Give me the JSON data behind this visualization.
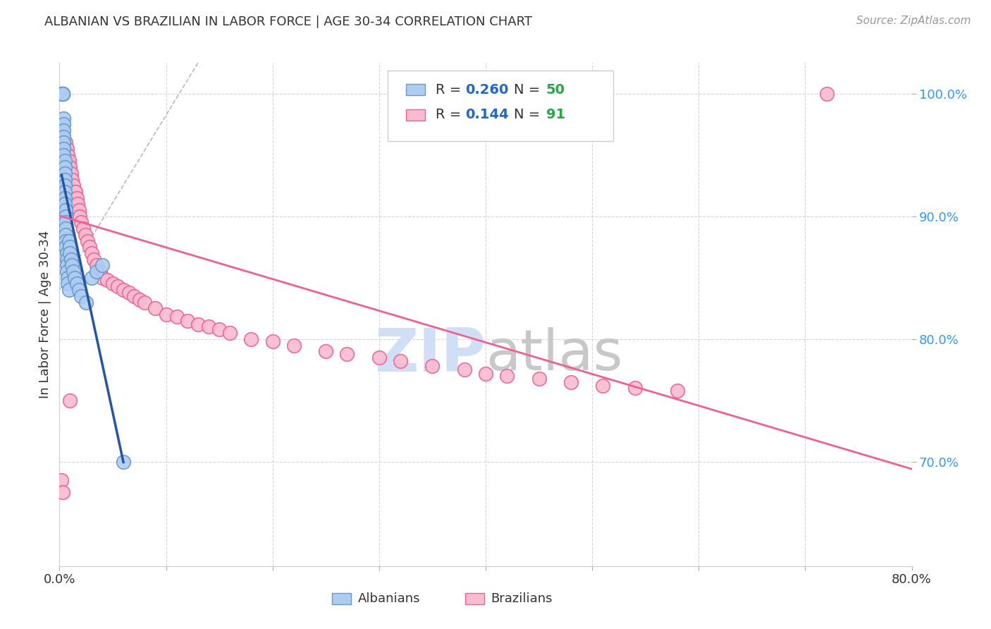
{
  "title": "ALBANIAN VS BRAZILIAN IN LABOR FORCE | AGE 30-34 CORRELATION CHART",
  "source": "Source: ZipAtlas.com",
  "ylabel": "In Labor Force | Age 30-34",
  "xlim": [
    0.0,
    0.8
  ],
  "ylim": [
    0.615,
    1.025
  ],
  "xtick_positions": [
    0.0,
    0.1,
    0.2,
    0.3,
    0.4,
    0.5,
    0.6,
    0.7,
    0.8
  ],
  "xtick_labels": [
    "0.0%",
    "",
    "",
    "",
    "",
    "",
    "",
    "",
    "80.0%"
  ],
  "ytick_positions": [
    1.0,
    0.9,
    0.8,
    0.7
  ],
  "ytick_labels": [
    "100.0%",
    "90.0%",
    "80.0%",
    "70.0%"
  ],
  "albanian_color": "#aeccf0",
  "albanian_edge_color": "#6699cc",
  "brazilian_color": "#f8bbd0",
  "brazilian_edge_color": "#f06090",
  "albanian_R": 0.26,
  "albanian_N": 50,
  "brazilian_R": 0.144,
  "brazilian_N": 91,
  "legend_R_color": "#2266cc",
  "legend_N_color": "#22aa44",
  "legend_label_color": "#333333",
  "albanian_trend_color": "#2255aa",
  "brazilian_trend_color": "#f06090",
  "ref_line_color": "#bbbbbb",
  "grid_color": "#cccccc",
  "background_color": "#ffffff",
  "watermark_zip_color": "#d0dff5",
  "watermark_atlas_color": "#c8c8c8",
  "axis_label_color": "#333333",
  "ytick_color": "#3399ff",
  "xtick_color": "#333333",
  "albanian_x": [
    0.002,
    0.003,
    0.003,
    0.003,
    0.003,
    0.003,
    0.004,
    0.004,
    0.004,
    0.004,
    0.004,
    0.004,
    0.004,
    0.005,
    0.005,
    0.005,
    0.005,
    0.005,
    0.005,
    0.005,
    0.005,
    0.006,
    0.006,
    0.006,
    0.006,
    0.006,
    0.006,
    0.006,
    0.007,
    0.007,
    0.007,
    0.007,
    0.008,
    0.008,
    0.009,
    0.009,
    0.01,
    0.01,
    0.011,
    0.012,
    0.013,
    0.014,
    0.016,
    0.018,
    0.02,
    0.025,
    0.03,
    0.035,
    0.04,
    0.06
  ],
  "albanian_y": [
    1.0,
    1.0,
    1.0,
    1.0,
    1.0,
    1.0,
    0.98,
    0.975,
    0.97,
    0.965,
    0.96,
    0.955,
    0.95,
    0.945,
    0.94,
    0.935,
    0.93,
    0.925,
    0.92,
    0.915,
    0.91,
    0.905,
    0.9,
    0.895,
    0.89,
    0.885,
    0.88,
    0.875,
    0.87,
    0.865,
    0.86,
    0.855,
    0.85,
    0.845,
    0.84,
    0.88,
    0.875,
    0.87,
    0.865,
    0.86,
    0.855,
    0.85,
    0.845,
    0.84,
    0.835,
    0.83,
    0.85,
    0.855,
    0.86,
    0.7
  ],
  "brazilian_x": [
    0.002,
    0.002,
    0.003,
    0.003,
    0.003,
    0.004,
    0.004,
    0.004,
    0.004,
    0.005,
    0.005,
    0.005,
    0.005,
    0.005,
    0.006,
    0.006,
    0.006,
    0.006,
    0.006,
    0.007,
    0.007,
    0.007,
    0.007,
    0.007,
    0.008,
    0.008,
    0.008,
    0.008,
    0.009,
    0.009,
    0.009,
    0.01,
    0.01,
    0.01,
    0.011,
    0.012,
    0.012,
    0.013,
    0.014,
    0.014,
    0.015,
    0.016,
    0.017,
    0.018,
    0.019,
    0.02,
    0.022,
    0.024,
    0.026,
    0.028,
    0.03,
    0.032,
    0.035,
    0.038,
    0.04,
    0.045,
    0.05,
    0.055,
    0.06,
    0.065,
    0.07,
    0.075,
    0.08,
    0.09,
    0.1,
    0.11,
    0.12,
    0.13,
    0.14,
    0.15,
    0.16,
    0.18,
    0.2,
    0.22,
    0.25,
    0.27,
    0.3,
    0.32,
    0.35,
    0.38,
    0.4,
    0.42,
    0.45,
    0.48,
    0.51,
    0.54,
    0.58,
    0.002,
    0.003,
    0.72,
    0.01
  ],
  "brazilian_y": [
    0.96,
    0.95,
    0.97,
    0.96,
    0.94,
    0.965,
    0.96,
    0.945,
    0.93,
    0.96,
    0.955,
    0.95,
    0.945,
    0.92,
    0.96,
    0.955,
    0.95,
    0.94,
    0.925,
    0.955,
    0.95,
    0.945,
    0.93,
    0.915,
    0.95,
    0.945,
    0.935,
    0.92,
    0.945,
    0.94,
    0.925,
    0.94,
    0.935,
    0.92,
    0.935,
    0.93,
    0.92,
    0.925,
    0.92,
    0.91,
    0.92,
    0.915,
    0.91,
    0.905,
    0.9,
    0.895,
    0.89,
    0.885,
    0.88,
    0.875,
    0.87,
    0.865,
    0.86,
    0.855,
    0.85,
    0.848,
    0.845,
    0.843,
    0.84,
    0.838,
    0.835,
    0.832,
    0.83,
    0.825,
    0.82,
    0.818,
    0.815,
    0.812,
    0.81,
    0.808,
    0.805,
    0.8,
    0.798,
    0.795,
    0.79,
    0.788,
    0.785,
    0.782,
    0.778,
    0.775,
    0.772,
    0.77,
    0.768,
    0.765,
    0.762,
    0.76,
    0.758,
    0.685,
    0.675,
    1.0,
    0.75
  ]
}
